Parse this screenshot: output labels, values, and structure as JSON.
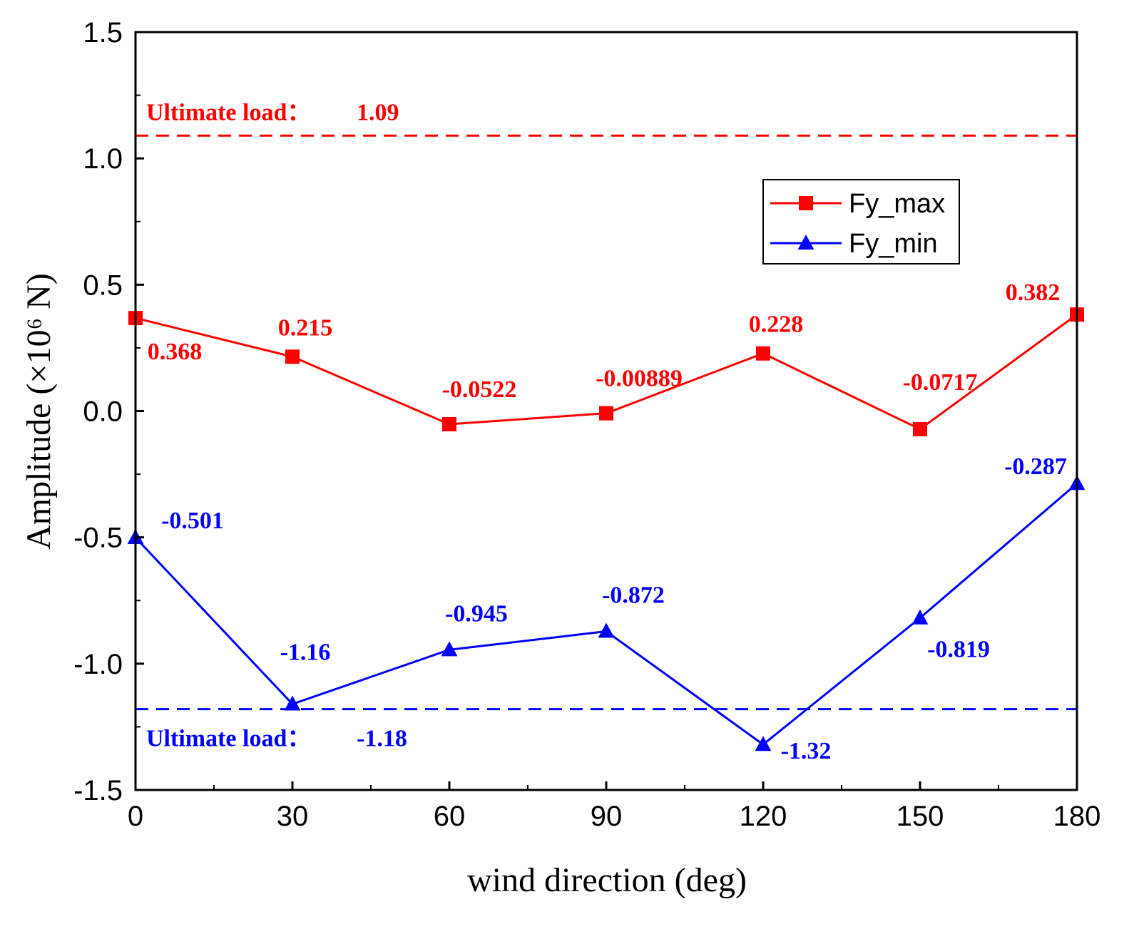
{
  "chart_data": {
    "type": "line",
    "xlabel": "wind direction (deg)",
    "ylabel": "Amplitude (×10⁶ N)",
    "xlim": [
      0,
      180
    ],
    "ylim": [
      -1.5,
      1.5
    ],
    "x_ticks": [
      "0",
      "30",
      "60",
      "90",
      "120",
      "150",
      "180"
    ],
    "y_ticks": [
      "1.5",
      "1.0",
      "0.5",
      "0.0",
      "-0.5",
      "-1.0",
      "-1.5"
    ],
    "x": [
      0,
      30,
      60,
      90,
      120,
      150,
      180
    ],
    "grid": false,
    "legend_position": "top-right",
    "series": [
      {
        "name": "Fy_max",
        "color": "#ff0000",
        "marker": "square",
        "values": [
          0.368,
          0.215,
          -0.0522,
          -0.00889,
          0.228,
          -0.0717,
          0.382
        ],
        "labels": [
          "0.368",
          "0.215",
          "-0.0522",
          "-0.00889",
          "0.228",
          "-0.0717",
          "0.382"
        ]
      },
      {
        "name": "Fy_min",
        "color": "#0000ff",
        "marker": "triangle",
        "values": [
          -0.501,
          -1.16,
          -0.945,
          -0.872,
          -1.32,
          -0.819,
          -0.287
        ],
        "labels": [
          "-0.501",
          "-1.16",
          "-0.945",
          "-0.872",
          "-1.32",
          "-0.819",
          "-0.287"
        ]
      }
    ],
    "reference_lines": [
      {
        "label": "Ultimate load：",
        "value_label": "1.09",
        "value": 1.09,
        "color": "#ff0000"
      },
      {
        "label": "Ultimate load：",
        "value_label": "-1.18",
        "value": -1.18,
        "color": "#0000ff"
      }
    ]
  }
}
